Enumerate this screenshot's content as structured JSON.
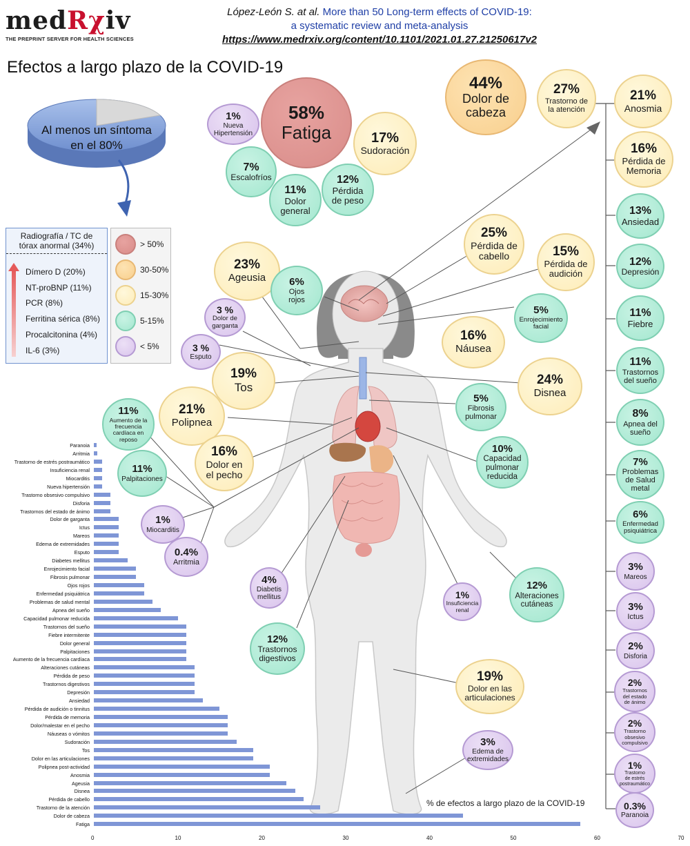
{
  "header": {
    "logo": "medRχiv",
    "logo_tagline": "THE PREPRINT SERVER FOR HEALTH SCIENCES",
    "citation_author": "López-León S. at al.",
    "citation_title_1": "More than 50 Long-term effects of COVID-19:",
    "citation_title_2": "a systematic review and meta-analysis",
    "citation_url": "https://www.medrxiv.org/content/10.1101/2021.01.27.21250617v2"
  },
  "page_title": "Efectos a largo plazo de la COVID-19",
  "pie": {
    "label": "Al menos un síntoma\nen el 80%",
    "value": 80
  },
  "labs": {
    "radiography": "Radiografía / TC de tórax anormal (34%)",
    "items": [
      "Dímero D (20%)",
      "NT-proBNP (11%)",
      "PCR (8%)",
      "Ferritina sérica (8%)",
      "Procalcitonina (4%)",
      "IL-6 (3%)"
    ]
  },
  "legend": [
    {
      "label": "> 50%",
      "color": "#d98c89"
    },
    {
      "label": "30-50%",
      "color": "#f9cf8d"
    },
    {
      "label": "15-30%",
      "color": "#fdecb8"
    },
    {
      "label": "5-15%",
      "color": "#a3e7cf"
    },
    {
      "label": "< 5%",
      "color": "#d9c4ec"
    }
  ],
  "bubbles": {
    "fatiga": {
      "pct": "58%",
      "label": "Fatiga"
    },
    "hipertension": {
      "pct": "1%",
      "label": "Nueva\nHipertensión"
    },
    "sudoracion": {
      "pct": "17%",
      "label": "Sudoración"
    },
    "escalofrios": {
      "pct": "7%",
      "label": "Escalofríos"
    },
    "dolor_general": {
      "pct": "11%",
      "label": "Dolor\ngeneral"
    },
    "perdida_peso": {
      "pct": "12%",
      "label": "Pérdida\nde peso"
    },
    "dolor_cabeza": {
      "pct": "44%",
      "label": "Dolor de\ncabeza"
    },
    "atencion": {
      "pct": "27%",
      "label": "Trastorno de\nla atención"
    },
    "anosmia": {
      "pct": "21%",
      "label": "Anosmia"
    },
    "memoria": {
      "pct": "16%",
      "label": "Pérdida de\nMemoria"
    },
    "ansiedad": {
      "pct": "13%",
      "label": "Ansiedad"
    },
    "depresion": {
      "pct": "12%",
      "label": "Depresión"
    },
    "fiebre": {
      "pct": "11%",
      "label": "Fiebre"
    },
    "sueno": {
      "pct": "11%",
      "label": "Trastornos\ndel sueño"
    },
    "apnea": {
      "pct": "8%",
      "label": "Apnea del\nsueño"
    },
    "salud_mental": {
      "pct": "7%",
      "label": "Problemas\nde Salud\nmetal"
    },
    "psiquiatrica": {
      "pct": "6%",
      "label": "Enfermedad\npsiquiátrica"
    },
    "mareos": {
      "pct": "3%",
      "label": "Mareos"
    },
    "ictus": {
      "pct": "3%",
      "label": "Ictus"
    },
    "disforia": {
      "pct": "2%",
      "label": "Disforia"
    },
    "animo": {
      "pct": "2%",
      "label": "Trastornos\ndel estado\nde ánimo"
    },
    "obsesivo": {
      "pct": "2%",
      "label": "Trastorno\nobsesivo\ncompulsivo"
    },
    "estres": {
      "pct": "1%",
      "label": "Trastorno\nde estrés\npostraumático"
    },
    "paranoia": {
      "pct": "0.3%",
      "label": "Paranoia"
    },
    "cabello": {
      "pct": "25%",
      "label": "Pérdida de\ncabello"
    },
    "audicion": {
      "pct": "15%",
      "label": "Pérdida de\naudición"
    },
    "ageusia": {
      "pct": "23%",
      "label": "Ageusia"
    },
    "ojos": {
      "pct": "6%",
      "label": "Ojos\nrojos"
    },
    "enrojecimiento": {
      "pct": "5%",
      "label": "Enrojecimiento\nfacial"
    },
    "garganta": {
      "pct": "3 %",
      "label": "Dolor de\ngarganta"
    },
    "nausea": {
      "pct": "16%",
      "label": "Náusea"
    },
    "esputo": {
      "pct": "3 %",
      "label": "Esputo"
    },
    "tos": {
      "pct": "19%",
      "label": "Tos"
    },
    "disnea": {
      "pct": "24%",
      "label": "Disnea"
    },
    "fibrosis": {
      "pct": "5%",
      "label": "Fibrosis\npulmonar"
    },
    "polipnea": {
      "pct": "21%",
      "label": "Polipnea"
    },
    "frecuencia": {
      "pct": "11%",
      "label": "Aumento de la\nfrecuencia\ncardíaca en\nreposo"
    },
    "capacidad": {
      "pct": "10%",
      "label": "Capacidad\npulmonar\nreducida"
    },
    "pecho": {
      "pct": "16%",
      "label": "Dolor en\nel pecho"
    },
    "palpitaciones": {
      "pct": "11%",
      "label": "Palpitaciones"
    },
    "miocarditis": {
      "pct": "1%",
      "label": "Miocarditis"
    },
    "arritmia": {
      "pct": "0.4%",
      "label": "Arritmia"
    },
    "diabetes": {
      "pct": "4%",
      "label": "Diabetis\nmellitus"
    },
    "renal": {
      "pct": "1%",
      "label": "Insuficiencia\nrenal"
    },
    "cutaneas": {
      "pct": "12%",
      "label": "Alteraciones\ncutáneas"
    },
    "digestivos": {
      "pct": "12%",
      "label": "Trastornos\ndigestivos"
    },
    "articulaciones": {
      "pct": "19%",
      "label": "Dolor en las\narticulaciones"
    },
    "edema": {
      "pct": "3%",
      "label": "Edema de\nextremidades"
    }
  },
  "chart_data": {
    "type": "bar",
    "title": "% de efectos a largo plazo de la COVID-19",
    "xlim": [
      0,
      70
    ],
    "xticks": [
      0,
      10,
      20,
      30,
      40,
      50,
      60,
      70
    ],
    "categories": [
      "Paranoia",
      "Arritmia",
      "Trastorno de estrés postraumático",
      "Insuficiencia renal",
      "Miocarditis",
      "Nueva hipertensión",
      "Trastorno obsesivo compulsivo",
      "Disforia",
      "Trastornos del estado de ánimo",
      "Dolor de garganta",
      "Ictus",
      "Mareos",
      "Edema de extremidades",
      "Esputo",
      "Diabetes mellitus",
      "Enrojecimiento facial",
      "Fibrosis pulmonar",
      "Ojos rojos",
      "Enfermedad psiquiátrica",
      "Problemas de salud mental",
      "Apnea del sueño",
      "Capacidad pulmonar reducida",
      "Trastornos del sueño",
      "Fiebre intermitente",
      "Dolor general",
      "Palpitaciones",
      "Aumento de la frecuencia cardíaca",
      "Alteraciones cutáneas",
      "Pérdida de peso",
      "Trastornos digestivos",
      "Depresión",
      "Ansiedad",
      "Pérdida de audición o tinnitus",
      "Pérdida de memoria",
      "Dolor/malestar en el pecho",
      "Náuseas o vómitos",
      "Sudoración",
      "Tos",
      "Dolor en las articulaciones",
      "Polipnea post-actividad",
      "Anosmia",
      "Ageusia",
      "Disnea",
      "Pérdida de cabello",
      "Trastorno de la atención",
      "Dolor de cabeza",
      "Fatiga"
    ],
    "values": [
      0.3,
      0.4,
      1,
      1,
      1,
      1,
      2,
      2,
      2,
      3,
      3,
      3,
      3,
      3,
      4,
      5,
      5,
      6,
      6,
      7,
      8,
      10,
      11,
      11,
      11,
      11,
      11,
      12,
      12,
      12,
      12,
      13,
      15,
      16,
      16,
      16,
      17,
      19,
      19,
      21,
      21,
      23,
      24,
      25,
      27,
      44,
      58
    ]
  }
}
